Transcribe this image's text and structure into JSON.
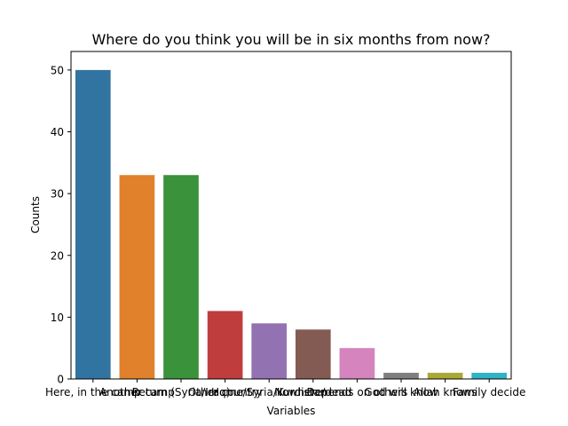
{
  "chart_data": {
    "type": "bar",
    "title": "Where do you think you will be in six months from now?",
    "xlabel": "Variables",
    "ylabel": "Counts",
    "ylim": [
      0,
      53
    ],
    "yticks": [
      0,
      10,
      20,
      30,
      40,
      50
    ],
    "grid": false,
    "categories": [
      "Here, in the camp",
      "Another camp",
      "Return (Syria/Iraq)",
      "Other country",
      "Home/Syria/Kurdistan",
      "Nowhere/dead",
      "Depends on others",
      "God will know",
      "Allah knows",
      "Family decide"
    ],
    "values": [
      50,
      33,
      33,
      11,
      9,
      8,
      5,
      1,
      1,
      1
    ],
    "colors": [
      "#3274a1",
      "#e1812c",
      "#3a923a",
      "#c03d3e",
      "#9372b2",
      "#845b53",
      "#d684bd",
      "#7f7f7f",
      "#a9aa35",
      "#2eb4c4"
    ]
  }
}
